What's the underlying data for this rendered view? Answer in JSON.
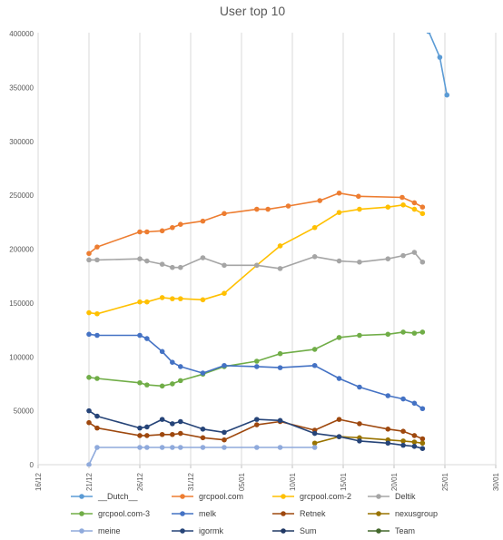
{
  "chart_data": {
    "type": "line",
    "title": "User top 10",
    "xlabel": "",
    "ylabel": "",
    "x_ticks": [
      "16/12",
      "21/12",
      "26/12",
      "31/12",
      "05/01",
      "10/01",
      "15/01",
      "20/01",
      "25/01",
      "30/01"
    ],
    "x_tick_days": [
      0,
      5,
      10,
      15,
      20,
      25,
      30,
      35,
      40,
      45
    ],
    "y_ticks": [
      "0",
      "50000",
      "100000",
      "150000",
      "200000",
      "250000",
      "300000",
      "350000",
      "400000"
    ],
    "ylim": [
      0,
      400000
    ],
    "grid": "vertical",
    "legend_position": "bottom",
    "series": [
      {
        "name": "__Dutch__",
        "color": "#5b9bd5",
        "x": [
          38.4,
          39.5,
          40.2
        ],
        "y": [
          402000,
          378000,
          343000
        ]
      },
      {
        "name": "grcpool.com",
        "color": "#ed7d31",
        "x": [
          5,
          5.8,
          10,
          10.7,
          12.2,
          13.2,
          14,
          16.2,
          18.3,
          21.5,
          22.6,
          24.6,
          27.7,
          29.6,
          31.5,
          35.8,
          37,
          37.8
        ],
        "y": [
          196000,
          202000,
          216000,
          216000,
          217000,
          220000,
          223000,
          226000,
          233000,
          237000,
          237000,
          240000,
          245000,
          252000,
          249000,
          248000,
          243000,
          239000
        ]
      },
      {
        "name": "grcpool.com-2",
        "color": "#ffc000",
        "x": [
          5,
          5.8,
          10,
          10.7,
          12.2,
          13.2,
          14,
          16.2,
          18.3,
          21.5,
          23.8,
          27.2,
          29.6,
          31.6,
          34.4,
          35.9,
          37,
          37.8
        ],
        "y": [
          141000,
          140000,
          151000,
          151000,
          155000,
          154000,
          154000,
          153000,
          159000,
          185000,
          203000,
          220000,
          234000,
          237000,
          239000,
          241000,
          237000,
          233000
        ]
      },
      {
        "name": "Deltik",
        "color": "#a5a5a5",
        "x": [
          5,
          5.8,
          10,
          10.7,
          12.2,
          13.2,
          14,
          16.2,
          18.3,
          21.5,
          23.8,
          27.2,
          29.6,
          31.6,
          34.4,
          35.9,
          37,
          37.8
        ],
        "y": [
          190000,
          190000,
          191000,
          189000,
          186000,
          183000,
          183000,
          192000,
          185000,
          185000,
          182000,
          193000,
          189000,
          188000,
          191000,
          194000,
          197000,
          188000
        ]
      },
      {
        "name": "grcpool.com-3",
        "color": "#70ad47",
        "x": [
          5,
          5.8,
          10,
          10.7,
          12.2,
          13.2,
          14,
          16.2,
          18.3,
          21.5,
          23.8,
          27.2,
          29.6,
          31.6,
          34.4,
          35.9,
          37,
          37.8
        ],
        "y": [
          81000,
          80000,
          76000,
          74000,
          73000,
          75000,
          78000,
          84000,
          91000,
          96000,
          103000,
          107000,
          118000,
          120000,
          121000,
          123000,
          122000,
          123000
        ]
      },
      {
        "name": "melk",
        "color": "#4472c4",
        "x": [
          5,
          5.8,
          10,
          10.7,
          12.2,
          13.2,
          14,
          16.2,
          18.3,
          21.5,
          23.8,
          27.2,
          29.6,
          31.6,
          34.4,
          35.9,
          37,
          37.8
        ],
        "y": [
          121000,
          120000,
          120000,
          117000,
          105000,
          95000,
          91000,
          85000,
          92000,
          91000,
          90000,
          92000,
          80000,
          72000,
          64000,
          61000,
          57000,
          52000
        ]
      },
      {
        "name": "Retnek",
        "color": "#9e480e",
        "x": [
          5,
          5.8,
          10,
          10.7,
          12.2,
          13.2,
          14,
          16.2,
          18.3,
          21.5,
          23.8,
          27.2,
          29.6,
          31.6,
          34.4,
          35.9,
          37,
          37.8
        ],
        "y": [
          39000,
          34000,
          27000,
          27000,
          28000,
          28000,
          29000,
          25000,
          23000,
          37000,
          40000,
          32000,
          42000,
          38000,
          33000,
          31000,
          27000,
          24000
        ]
      },
      {
        "name": "nexusgroup",
        "color": "#997300",
        "x": [
          27.2,
          29.6,
          31.6,
          34.4,
          35.9,
          37,
          37.8
        ],
        "y": [
          20000,
          26000,
          25000,
          23000,
          22000,
          21000,
          20000
        ]
      },
      {
        "name": "meine",
        "color": "#8faadc",
        "x": [
          5,
          5.8,
          10,
          10.7,
          12.2,
          13.2,
          14,
          16.2,
          18.3,
          21.5,
          23.8,
          27.2
        ],
        "y": [
          0,
          16000,
          16000,
          16000,
          16000,
          16000,
          16000,
          16000,
          16000,
          16000,
          16000,
          16000
        ]
      },
      {
        "name": "igormk",
        "color": "#264478",
        "x": [
          5,
          5.8,
          10,
          10.7,
          12.2,
          13.2,
          14,
          16.2,
          18.3,
          21.5,
          23.8,
          27.2,
          29.6,
          31.6,
          34.4,
          35.9,
          37,
          37.8
        ],
        "y": [
          50000,
          45000,
          34000,
          35000,
          42000,
          38000,
          40000,
          33000,
          30000,
          42000,
          41000,
          29000,
          26000,
          22000,
          20000,
          18000,
          17000,
          15000
        ]
      },
      {
        "name": "Sum",
        "color": "#203864",
        "x": [],
        "y": []
      },
      {
        "name": "Team",
        "color": "#43682b",
        "x": [],
        "y": []
      }
    ]
  }
}
